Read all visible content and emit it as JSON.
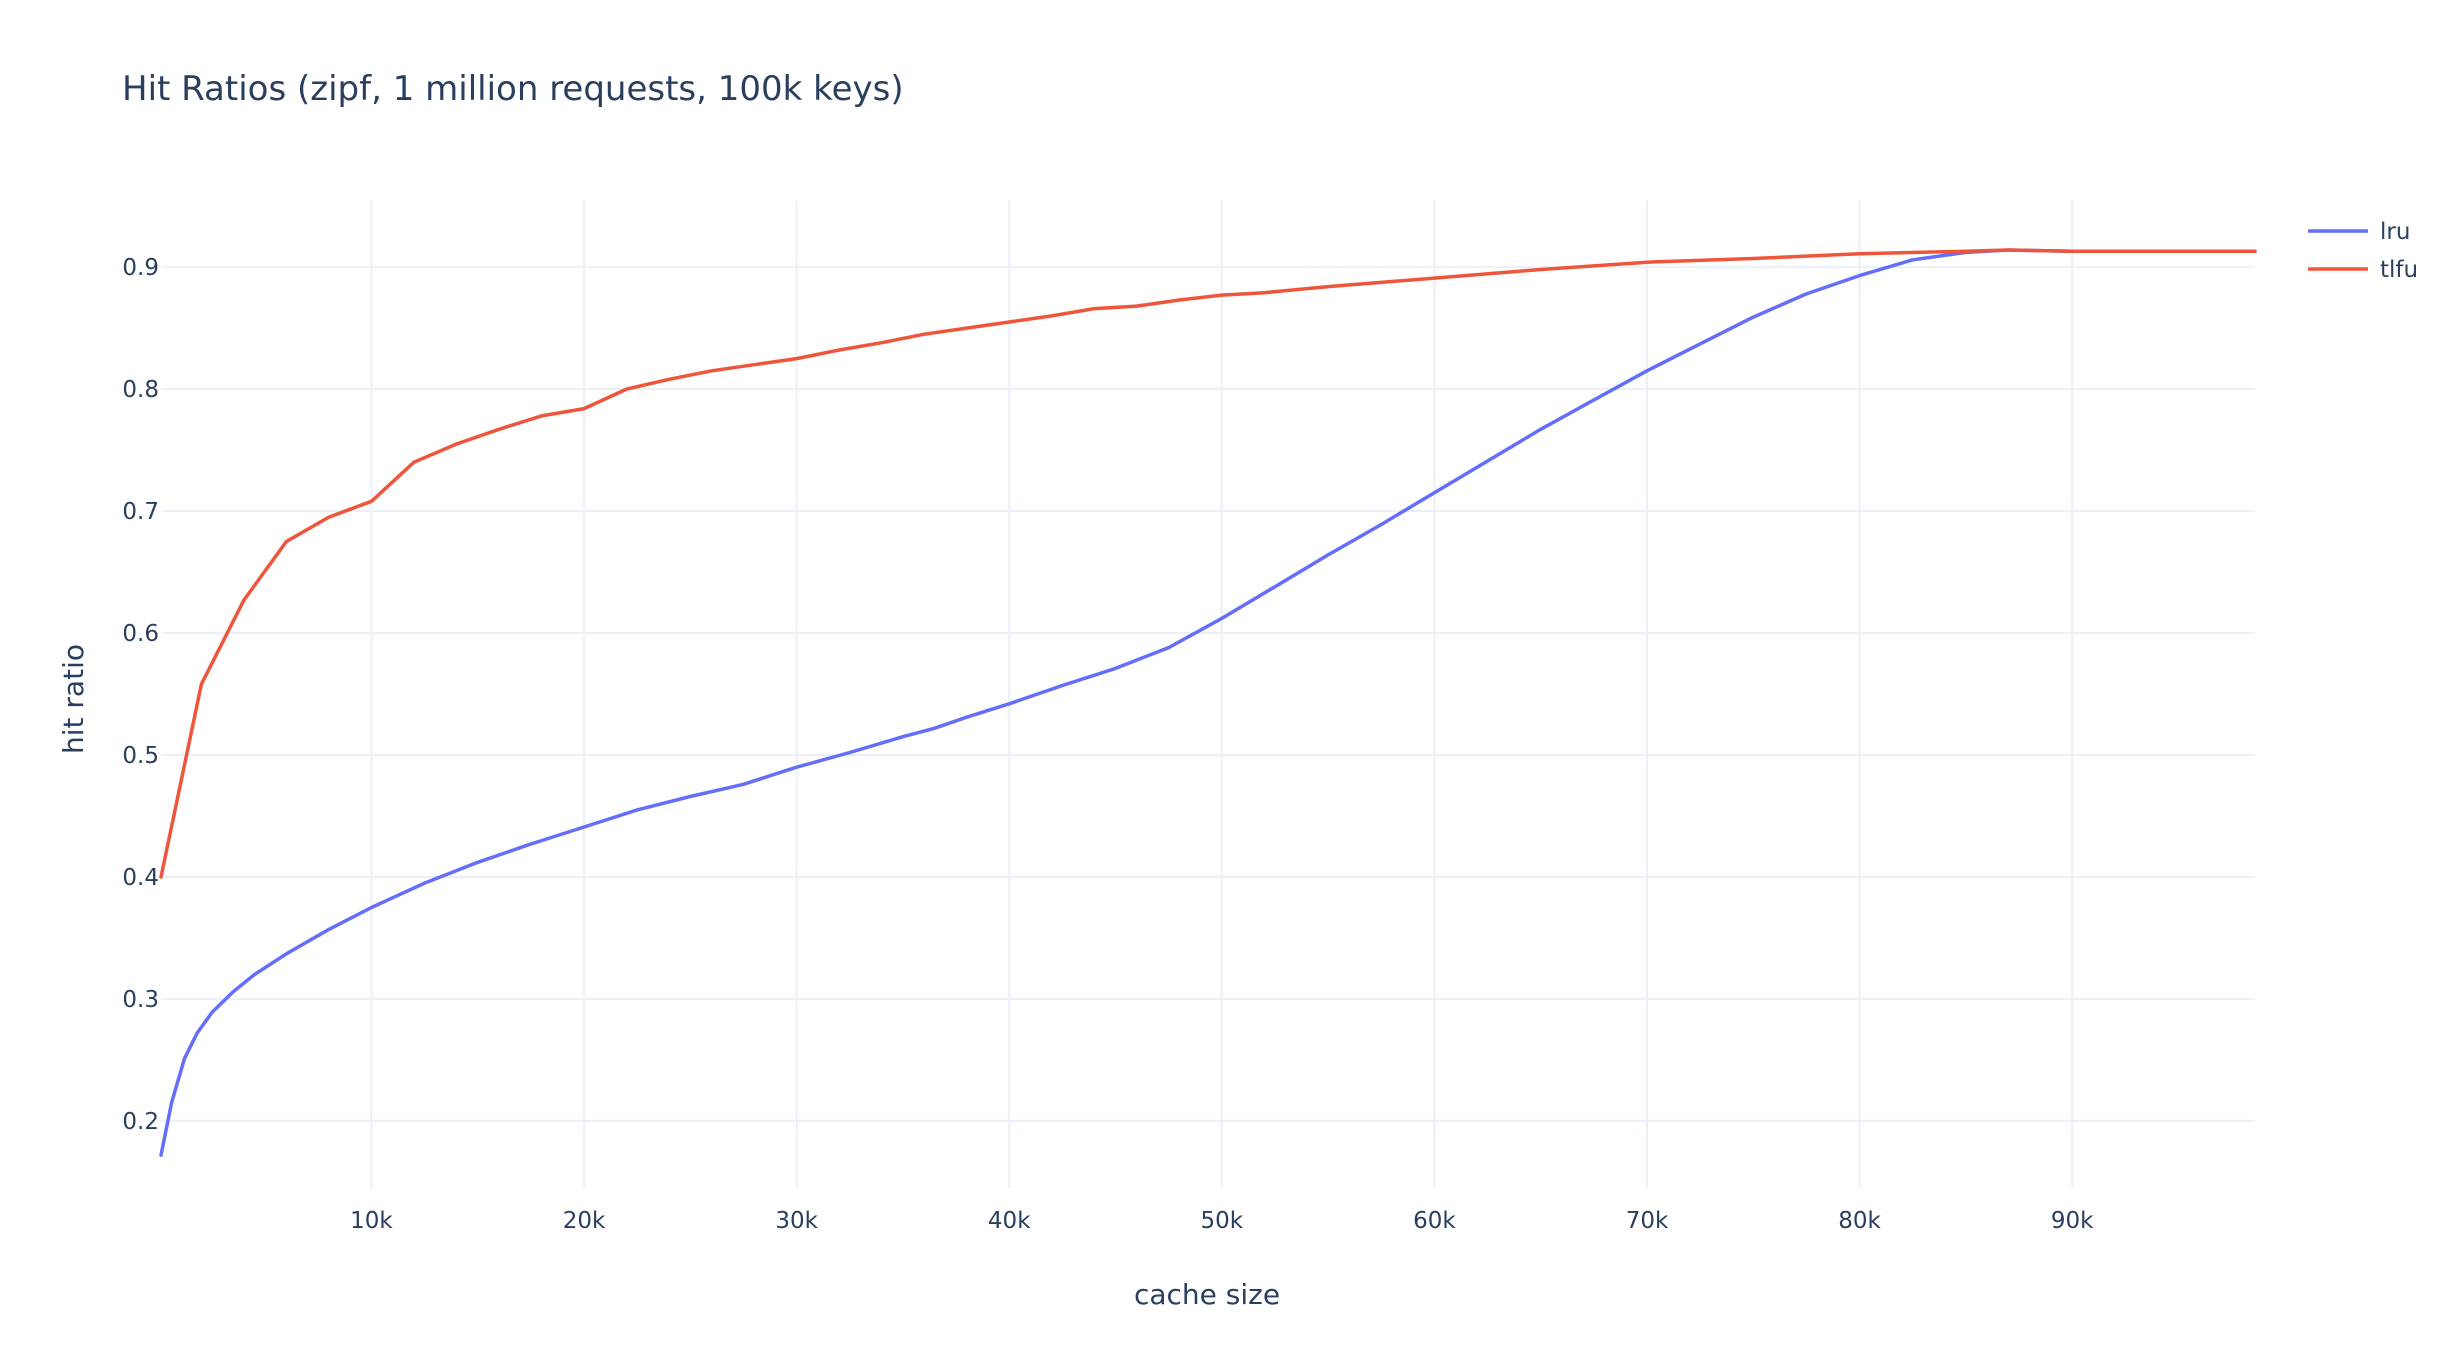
{
  "chart_data": {
    "type": "line",
    "title": "Hit Ratios (zipf, 1 million requests, 100k keys)",
    "xlabel": "cache size",
    "ylabel": "hit ratio",
    "xlim": [
      100,
      98600
    ],
    "ylim": [
      0.145,
      0.955
    ],
    "x_ticks": [
      10000,
      20000,
      30000,
      40000,
      50000,
      60000,
      70000,
      80000,
      90000
    ],
    "x_tick_labels": [
      "10k",
      "20k",
      "30k",
      "40k",
      "50k",
      "60k",
      "70k",
      "80k",
      "90k"
    ],
    "y_ticks": [
      0.2,
      0.3,
      0.4,
      0.5,
      0.6,
      0.7,
      0.8,
      0.9
    ],
    "y_tick_labels": [
      "0.2",
      "0.3",
      "0.4",
      "0.5",
      "0.6",
      "0.7",
      "0.8",
      "0.9"
    ],
    "grid": true,
    "legend": "top-right",
    "series": [
      {
        "name": "lru",
        "color": "#636efa",
        "x": [
          100,
          600,
          1200,
          1800,
          2500,
          3500,
          4500,
          6000,
          8000,
          10000,
          12500,
          15000,
          17500,
          20000,
          22500,
          25000,
          27500,
          30000,
          32500,
          35000,
          36500,
          38000,
          40000,
          42500,
          45000,
          47500,
          50000,
          52500,
          55000,
          57500,
          60000,
          62500,
          65000,
          67500,
          70000,
          72500,
          75000,
          77500,
          80000,
          82500,
          85000,
          87000,
          90000,
          95000,
          98600
        ],
        "y": [
          0.172,
          0.215,
          0.251,
          0.272,
          0.289,
          0.306,
          0.32,
          0.337,
          0.357,
          0.375,
          0.395,
          0.412,
          0.427,
          0.441,
          0.455,
          0.466,
          0.476,
          0.49,
          0.502,
          0.515,
          0.522,
          0.531,
          0.542,
          0.557,
          0.571,
          0.588,
          0.612,
          0.638,
          0.664,
          0.689,
          0.715,
          0.741,
          0.767,
          0.791,
          0.815,
          0.837,
          0.859,
          0.878,
          0.893,
          0.906,
          0.912,
          0.914,
          0.913,
          0.913,
          0.913
        ]
      },
      {
        "name": "tlfu",
        "color": "#ef553b",
        "x": [
          100,
          2000,
          4000,
          6000,
          8000,
          10000,
          12000,
          14000,
          16000,
          18000,
          20000,
          22000,
          24000,
          26000,
          28000,
          30000,
          32000,
          34000,
          36000,
          38000,
          40000,
          42000,
          44000,
          46000,
          48000,
          50000,
          52000,
          55000,
          60000,
          65000,
          70000,
          75000,
          80000,
          85000,
          87000,
          90000,
          95000,
          98600
        ],
        "y": [
          0.4,
          0.558,
          0.627,
          0.675,
          0.695,
          0.708,
          0.74,
          0.755,
          0.767,
          0.778,
          0.784,
          0.8,
          0.808,
          0.815,
          0.82,
          0.825,
          0.832,
          0.838,
          0.845,
          0.85,
          0.855,
          0.86,
          0.866,
          0.868,
          0.873,
          0.877,
          0.879,
          0.884,
          0.891,
          0.898,
          0.904,
          0.907,
          0.911,
          0.913,
          0.914,
          0.913,
          0.913,
          0.913
        ]
      }
    ]
  }
}
